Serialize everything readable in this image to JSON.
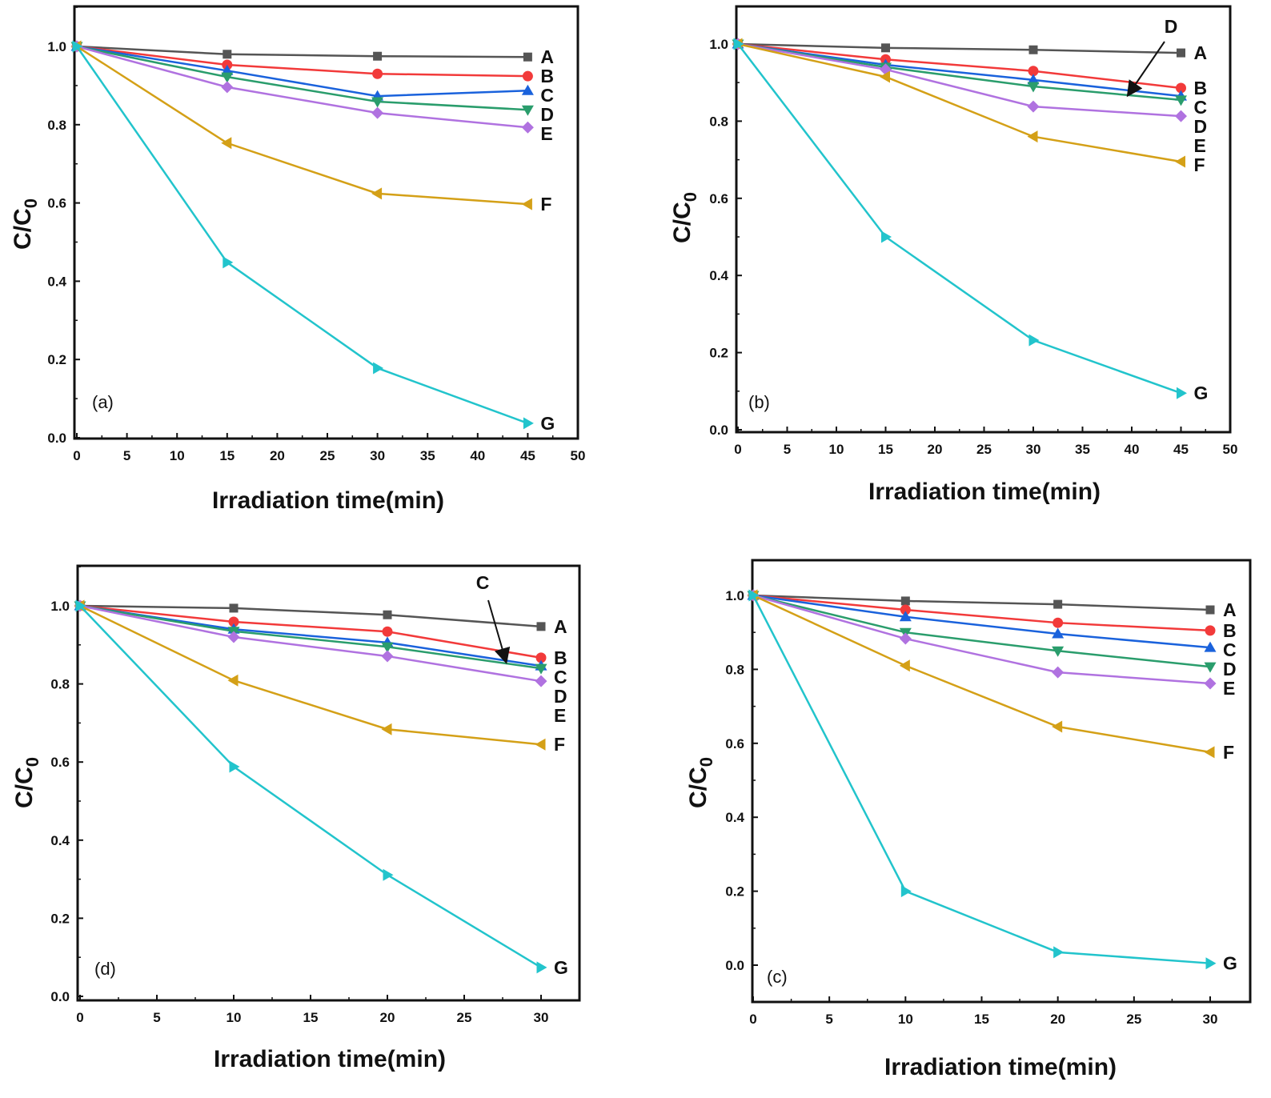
{
  "chart_data": [
    {
      "type": "line",
      "panel_label": "(a)",
      "xlabel": "Irradiation time(min)",
      "ylabel": "C/C",
      "ylabel_sub": "0",
      "xlim": [
        0,
        50
      ],
      "ylim": [
        0,
        1.1
      ],
      "xticks": [
        0,
        5,
        10,
        15,
        20,
        25,
        30,
        35,
        40,
        45,
        50
      ],
      "yticks": [
        "0.0",
        "0.2",
        "0.4",
        "0.6",
        "0.8",
        "1.0"
      ],
      "x": [
        0,
        15,
        30,
        45
      ],
      "series": [
        {
          "name": "A",
          "color": "#555555",
          "marker": "square",
          "values": [
            1,
            0.98,
            0.975,
            0.973
          ]
        },
        {
          "name": "B",
          "color": "#f23a3a",
          "marker": "circle",
          "values": [
            1,
            0.953,
            0.93,
            0.924
          ]
        },
        {
          "name": "C",
          "color": "#1a62dc",
          "marker": "triangle-up",
          "values": [
            1,
            0.938,
            0.873,
            0.887
          ]
        },
        {
          "name": "D",
          "color": "#2a9d6c",
          "marker": "triangle-down",
          "values": [
            1,
            0.922,
            0.859,
            0.838
          ]
        },
        {
          "name": "E",
          "color": "#b072e0",
          "marker": "diamond",
          "values": [
            1,
            0.896,
            0.83,
            0.793
          ]
        },
        {
          "name": "F",
          "color": "#d4a017",
          "marker": "triangle-left",
          "values": [
            1,
            0.753,
            0.624,
            0.597
          ]
        },
        {
          "name": "G",
          "color": "#22c4cc",
          "marker": "triangle-right",
          "values": [
            1,
            0.448,
            0.178,
            0.037
          ]
        }
      ],
      "annotations": []
    },
    {
      "type": "line",
      "panel_label": "(b)",
      "xlabel": "Irradiation time(min)",
      "ylabel": "C/C",
      "ylabel_sub": "0",
      "xlim": [
        0,
        50
      ],
      "ylim": [
        0,
        1.1
      ],
      "xticks": [
        0,
        5,
        10,
        15,
        20,
        25,
        30,
        35,
        40,
        45,
        50
      ],
      "yticks": [
        "0.0",
        "0.2",
        "0.4",
        "0.6",
        "0.8",
        "1.0"
      ],
      "x": [
        0,
        15,
        30,
        45
      ],
      "series": [
        {
          "name": "A",
          "color": "#555555",
          "marker": "square",
          "values": [
            1,
            0.99,
            0.985,
            0.977
          ]
        },
        {
          "name": "B",
          "color": "#f23a3a",
          "marker": "circle",
          "values": [
            1,
            0.96,
            0.93,
            0.886
          ]
        },
        {
          "name": "C",
          "color": "#1a62dc",
          "marker": "triangle-up",
          "values": [
            1,
            0.946,
            0.907,
            0.865
          ]
        },
        {
          "name": "D",
          "color": "#2a9d6c",
          "marker": "triangle-down",
          "values": [
            1,
            0.94,
            0.89,
            0.855
          ]
        },
        {
          "name": "E",
          "color": "#b072e0",
          "marker": "diamond",
          "values": [
            1,
            0.934,
            0.838,
            0.813
          ]
        },
        {
          "name": "F",
          "color": "#d4a017",
          "marker": "triangle-left",
          "values": [
            1,
            0.915,
            0.76,
            0.695
          ]
        },
        {
          "name": "G",
          "color": "#22c4cc",
          "marker": "triangle-right",
          "values": [
            1,
            0.5,
            0.232,
            0.095
          ]
        }
      ],
      "annotations": [
        {
          "text": "D",
          "points_to_series": "D"
        }
      ]
    },
    {
      "type": "line",
      "panel_label": "(d)",
      "xlabel": "Irradiation time(min)",
      "ylabel": "C/C",
      "ylabel_sub": "0",
      "xlim": [
        0,
        32
      ],
      "ylim": [
        0,
        1.1
      ],
      "xticks": [
        0,
        5,
        10,
        15,
        20,
        25,
        30
      ],
      "yticks": [
        "0.0",
        "0.2",
        "0.4",
        "0.6",
        "0.8",
        "1.0"
      ],
      "x": [
        0,
        10,
        20,
        30
      ],
      "series": [
        {
          "name": "A",
          "color": "#555555",
          "marker": "square",
          "values": [
            1,
            0.994,
            0.977,
            0.947
          ]
        },
        {
          "name": "B",
          "color": "#f23a3a",
          "marker": "circle",
          "values": [
            1,
            0.959,
            0.934,
            0.867
          ]
        },
        {
          "name": "C",
          "color": "#1a62dc",
          "marker": "triangle-up",
          "values": [
            1,
            0.94,
            0.906,
            0.846
          ]
        },
        {
          "name": "D",
          "color": "#2a9d6c",
          "marker": "triangle-down",
          "values": [
            1,
            0.935,
            0.895,
            0.84
          ]
        },
        {
          "name": "E",
          "color": "#b072e0",
          "marker": "diamond",
          "values": [
            1,
            0.92,
            0.871,
            0.807
          ]
        },
        {
          "name": "F",
          "color": "#d4a017",
          "marker": "triangle-left",
          "values": [
            1,
            0.809,
            0.684,
            0.645
          ]
        },
        {
          "name": "G",
          "color": "#22c4cc",
          "marker": "triangle-right",
          "values": [
            1,
            0.588,
            0.311,
            0.074
          ]
        }
      ],
      "annotations": [
        {
          "text": "C",
          "points_to_series": "C"
        }
      ]
    },
    {
      "type": "line",
      "panel_label": "(c)",
      "xlabel": "Irradiation time(min)",
      "ylabel": "C/C",
      "ylabel_sub": "0",
      "xlim": [
        0,
        32
      ],
      "ylim": [
        -0.1,
        1.1
      ],
      "xticks": [
        0,
        5,
        10,
        15,
        20,
        25,
        30
      ],
      "yticks": [
        "0.0",
        "0.2",
        "0.4",
        "0.6",
        "0.8",
        "1.0"
      ],
      "x": [
        0,
        10,
        20,
        30
      ],
      "series": [
        {
          "name": "A",
          "color": "#555555",
          "marker": "square",
          "values": [
            1,
            0.985,
            0.976,
            0.961
          ]
        },
        {
          "name": "B",
          "color": "#f23a3a",
          "marker": "circle",
          "values": [
            1,
            0.961,
            0.926,
            0.905
          ]
        },
        {
          "name": "C",
          "color": "#1a62dc",
          "marker": "triangle-up",
          "values": [
            1,
            0.942,
            0.896,
            0.859
          ]
        },
        {
          "name": "D",
          "color": "#2a9d6c",
          "marker": "triangle-down",
          "values": [
            1,
            0.9,
            0.85,
            0.807
          ]
        },
        {
          "name": "E",
          "color": "#b072e0",
          "marker": "diamond",
          "values": [
            1,
            0.883,
            0.792,
            0.762
          ]
        },
        {
          "name": "F",
          "color": "#d4a017",
          "marker": "triangle-left",
          "values": [
            1,
            0.81,
            0.645,
            0.576
          ]
        },
        {
          "name": "G",
          "color": "#22c4cc",
          "marker": "triangle-right",
          "values": [
            1,
            0.2,
            0.035,
            0.005
          ]
        }
      ],
      "annotations": []
    }
  ]
}
